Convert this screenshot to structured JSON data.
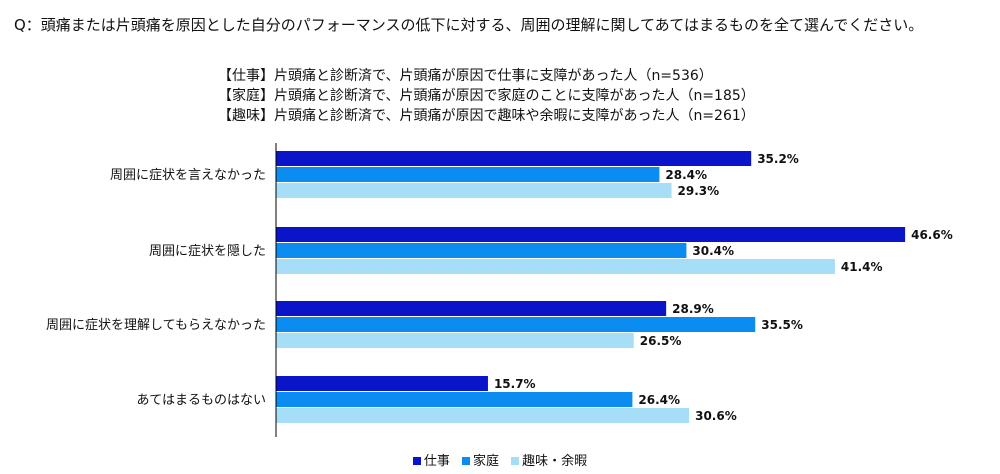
{
  "question": "Q：頭痛または片頭痛を原因とした自分のパフォーマンスの低下に対する、周囲の理解に関してあてはまるものを全て選んでください。",
  "notes": [
    "【仕事】片頭痛と診断済で、片頭痛が原因で仕事に支障があった人（n=536）",
    "【家庭】片頭痛と診断済で、片頭痛が原因で家庭のことに支障があった人（n=185）",
    "【趣味】片頭痛と診断済で、片頭痛が原因で趣味や余暇に支障があった人（n=261）"
  ],
  "colors": {
    "work": "#0a14c8",
    "home": "#0a8cf0",
    "hobby": "#a6ddf7",
    "axis": "#000000"
  },
  "chart_data": {
    "type": "bar",
    "orientation": "horizontal",
    "categories": [
      "周囲に症状を言えなかった",
      "周囲に症状を隠した",
      "周囲に症状を理解してもらえなかった",
      "あてはまるものはない"
    ],
    "series": [
      {
        "name": "仕事",
        "values": [
          35.2,
          46.6,
          28.9,
          15.7
        ],
        "labels": [
          "35.2%",
          "46.6%",
          "28.9%",
          "15.7%"
        ]
      },
      {
        "name": "家庭",
        "values": [
          28.4,
          30.4,
          35.5,
          26.4
        ],
        "labels": [
          "28.4%",
          "30.4%",
          "35.5%",
          "26.4%"
        ]
      },
      {
        "name": "趣味・余暇",
        "values": [
          29.3,
          41.4,
          26.5,
          30.6
        ],
        "labels": [
          "29.3%",
          "41.4%",
          "26.5%",
          "30.6%"
        ]
      }
    ],
    "unit": "%",
    "legend_position": "bottom-center",
    "grid": false
  }
}
